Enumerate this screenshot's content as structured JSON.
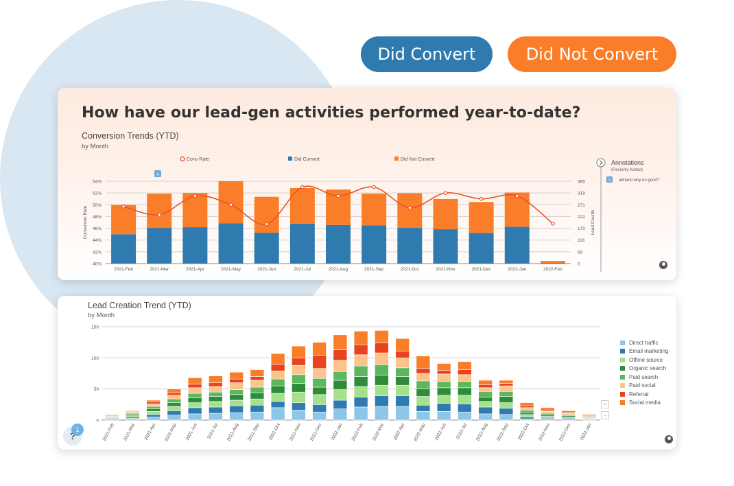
{
  "buttons": {
    "did_convert": "Did Convert",
    "did_not_convert": "Did Not Convert"
  },
  "headline": "How have our lead-gen activities performed year-to-date?",
  "help": {
    "icon": "?",
    "badge": "1"
  },
  "colors": {
    "blue": "#2f7bb0",
    "orange": "#fa7e2a",
    "line": "#e8532a"
  },
  "chart_data": [
    {
      "type": "bar",
      "title": "Conversion Trends (YTD)",
      "subtitle": "by Month",
      "legend": [
        "Conv Rate",
        "Did Convert",
        "Did Not Convert"
      ],
      "ylabel_left": "Conversion Rate",
      "ylabel_right": "Lead Counts",
      "left_ticks": [
        "40%",
        "42%",
        "44%",
        "46%",
        "48%",
        "50%",
        "52%",
        "54%"
      ],
      "right_ticks": [
        "0",
        "59",
        "116",
        "170",
        "222",
        "271",
        "319",
        "365"
      ],
      "ylim_right": [
        0,
        365
      ],
      "ylim_left": [
        40,
        54
      ],
      "categories": [
        "2021-Feb",
        "2021-Mar",
        "2021-Apr",
        "2021-May",
        "2021-Jun",
        "2021-Jul",
        "2021-Aug",
        "2021-Sep",
        "2021-Oct",
        "2021-Nov",
        "2021-Dec",
        "2022-Jan",
        "2022-Feb"
      ],
      "series": [
        {
          "name": "Did Convert",
          "values": [
            130,
            158,
            161,
            178,
            137,
            177,
            171,
            169,
            158,
            152,
            136,
            163,
            3
          ]
        },
        {
          "name": "Did Not Convert",
          "values": [
            130,
            152,
            152,
            187,
            159,
            158,
            157,
            141,
            154,
            134,
            137,
            152,
            9
          ]
        }
      ],
      "line": {
        "name": "Conv Rate",
        "values": [
          49.7,
          48.3,
          51.5,
          50.0,
          46.7,
          53.0,
          51.5,
          53.0,
          49.5,
          52.0,
          51.0,
          51.5,
          46.8
        ]
      },
      "annotation_marker": {
        "label": "A",
        "category": "2021-Mar"
      },
      "annotations": {
        "title": "Annotations",
        "subtitle": "(Recently Added)",
        "items": [
          {
            "marker": "A",
            "text": "adriano why no good?"
          }
        ]
      },
      "grid": true
    },
    {
      "type": "bar",
      "stacked": true,
      "title": "Lead Creation Trend (YTD)",
      "subtitle": "by Month",
      "ylim": [
        0,
        150
      ],
      "yticks": [
        "0",
        "50",
        "100",
        "150"
      ],
      "categories": [
        "2021-Feb",
        "2021-Mar",
        "2021-Apr",
        "2021-May",
        "2021-Jun",
        "2021-Jul",
        "2021-Aug",
        "2021-Sep",
        "2021-Oct",
        "2021-Nov",
        "2021-Dec",
        "2022-Jan",
        "2022-Feb",
        "2022-Mar",
        "2022-Apr",
        "2022-May",
        "2022-Jun",
        "2022-Jul",
        "2022-Aug",
        "2022-Sep",
        "2022-Oct",
        "2022-Nov",
        "2022-Dec",
        "2023-Jan"
      ],
      "series": [
        {
          "name": "Direct traffic",
          "color": "#8cc7ea",
          "values": [
            2,
            3,
            5,
            8,
            10,
            11,
            12,
            13,
            20,
            16,
            13,
            18,
            21,
            22,
            22,
            14,
            14,
            13,
            10,
            9,
            2,
            1,
            1,
            1
          ]
        },
        {
          "name": "Email marketing",
          "color": "#2f7bb0",
          "values": [
            1,
            2,
            4,
            7,
            10,
            10,
            11,
            11,
            10,
            12,
            12,
            14,
            16,
            17,
            17,
            10,
            13,
            13,
            11,
            10,
            3,
            2,
            2,
            1
          ]
        },
        {
          "name": "Offline source",
          "color": "#a5e08a",
          "values": [
            1,
            2,
            5,
            7,
            8,
            9,
            9,
            10,
            13,
            17,
            16,
            17,
            17,
            17,
            17,
            14,
            13,
            14,
            9,
            9,
            4,
            3,
            2,
            1
          ]
        },
        {
          "name": "Organic search",
          "color": "#2e8b3a",
          "values": [
            1,
            2,
            4,
            6,
            8,
            8,
            9,
            10,
            12,
            14,
            12,
            15,
            16,
            16,
            14,
            12,
            12,
            12,
            7,
            10,
            3,
            2,
            2,
            1
          ]
        },
        {
          "name": "Paid search",
          "color": "#5cb85c",
          "values": [
            1,
            2,
            4,
            6,
            7,
            7,
            8,
            9,
            11,
            14,
            14,
            14,
            17,
            17,
            14,
            13,
            10,
            10,
            9,
            8,
            4,
            3,
            2,
            1
          ]
        },
        {
          "name": "Paid social",
          "color": "#fcc48a",
          "values": [
            1,
            2,
            4,
            6,
            9,
            9,
            11,
            11,
            13,
            15,
            16,
            18,
            18,
            19,
            16,
            12,
            12,
            11,
            6,
            9,
            4,
            3,
            2,
            1
          ]
        },
        {
          "name": "Referral",
          "color": "#e9421e",
          "values": [
            1,
            1,
            3,
            4,
            6,
            6,
            6,
            6,
            11,
            12,
            21,
            17,
            16,
            16,
            11,
            8,
            6,
            8,
            5,
            4,
            3,
            2,
            1,
            1
          ]
        },
        {
          "name": "Social media",
          "color": "#fa7e2a",
          "values": [
            1,
            1,
            3,
            6,
            10,
            11,
            11,
            11,
            17,
            19,
            21,
            24,
            22,
            20,
            20,
            20,
            11,
            13,
            7,
            5,
            5,
            4,
            3,
            2
          ]
        }
      ],
      "grid": true
    }
  ]
}
